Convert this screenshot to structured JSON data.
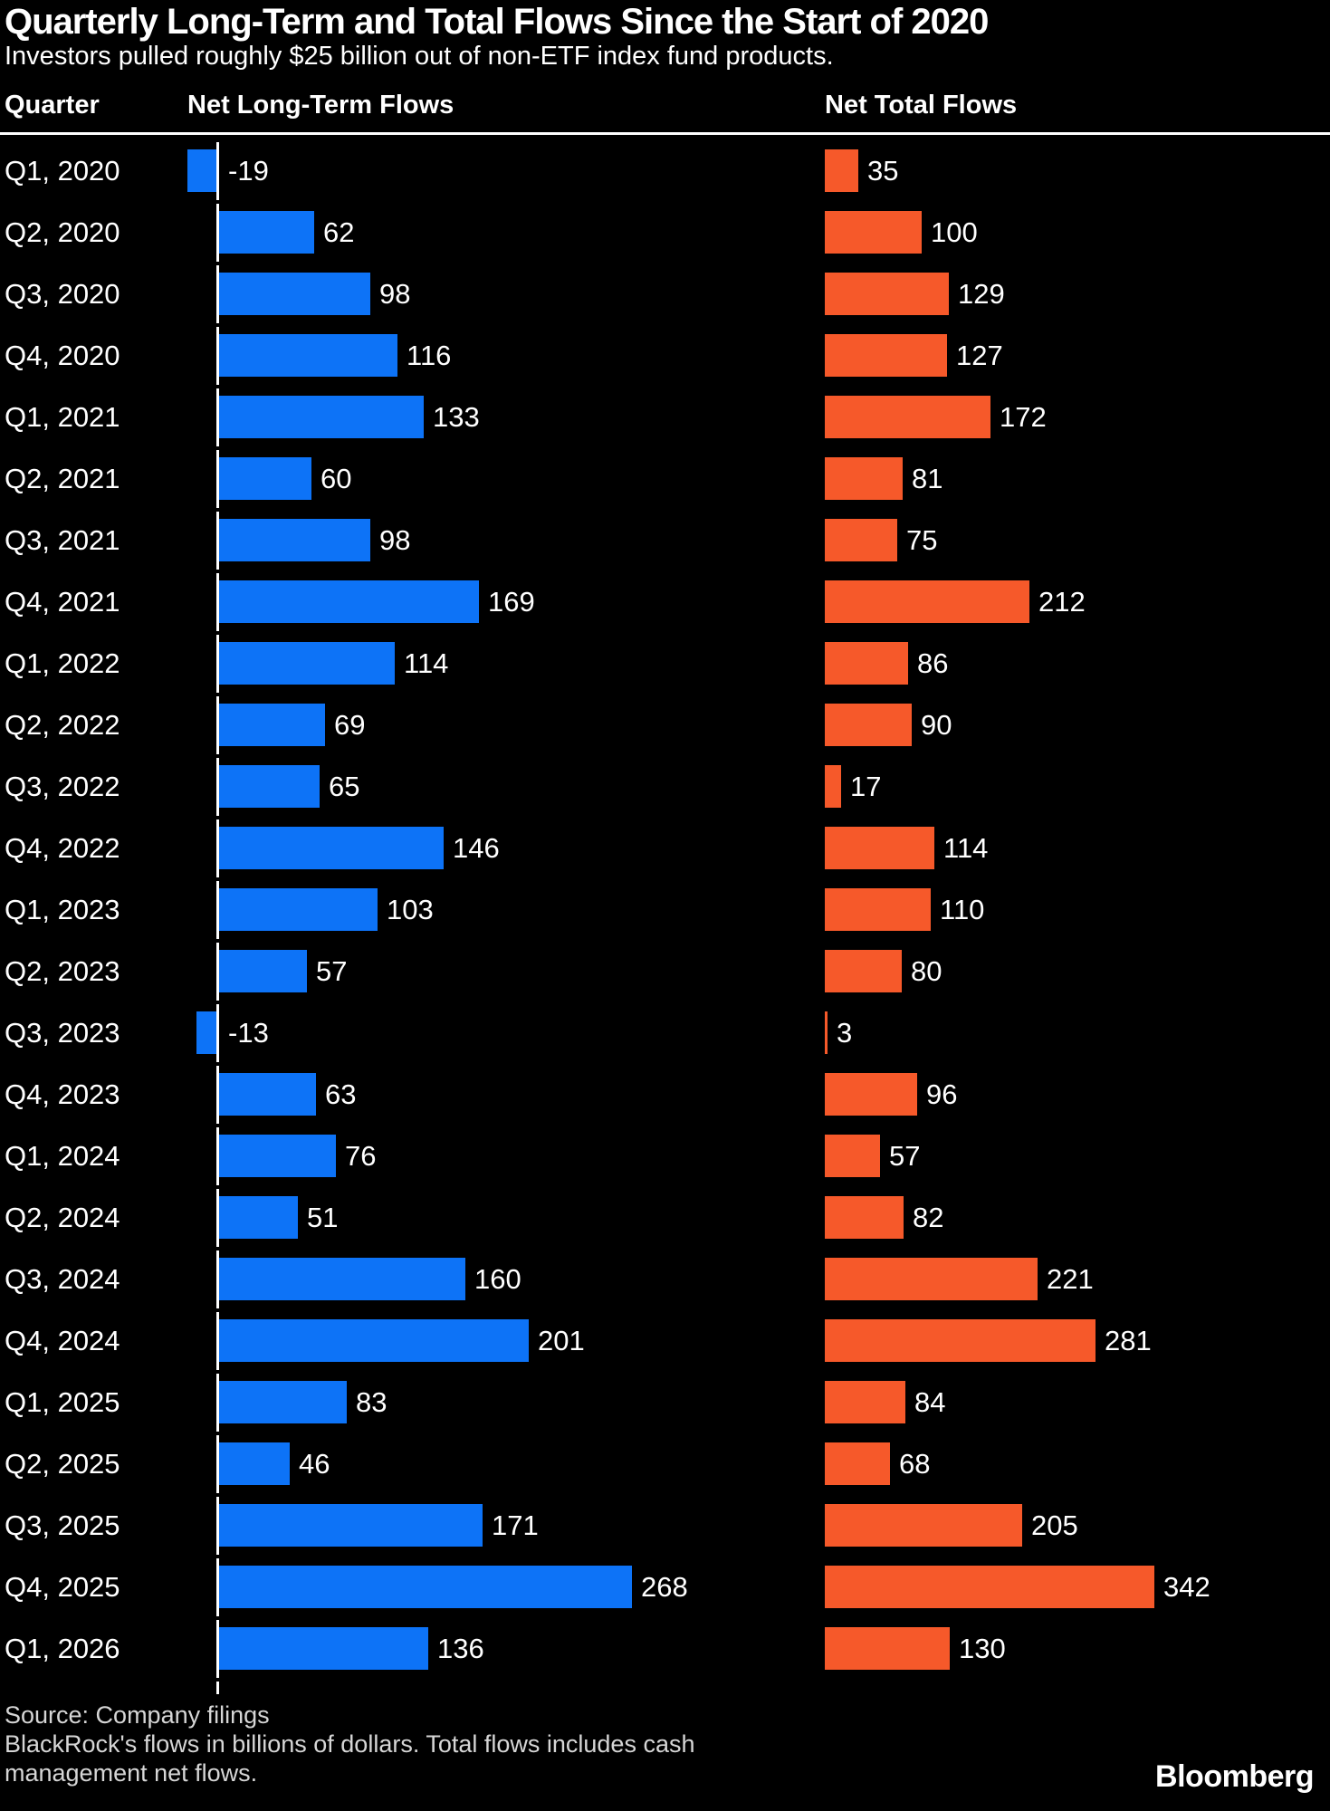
{
  "header": {
    "title": "Quarterly Long-Term and Total Flows Since the Start of 2020",
    "subtitle": "Investors pulled roughly $25 billion out of non-ETF index fund products.",
    "col_quarter": "Quarter",
    "col_long_term": "Net Long-Term Flows",
    "col_total": "Net Total Flows"
  },
  "chart_data": {
    "type": "bar",
    "orientation": "horizontal",
    "title": "Quarterly Long-Term and Total Flows Since the Start of 2020",
    "subtitle": "Investors pulled roughly $25 billion out of non-ETF index fund products.",
    "categories": [
      "Q1, 2020",
      "Q2, 2020",
      "Q3, 2020",
      "Q4, 2020",
      "Q1, 2021",
      "Q2, 2021",
      "Q3, 2021",
      "Q4, 2021",
      "Q1, 2022",
      "Q2, 2022",
      "Q3, 2022",
      "Q4, 2022",
      "Q1, 2023",
      "Q2, 2023",
      "Q3, 2023",
      "Q4, 2023",
      "Q1, 2024",
      "Q2, 2024",
      "Q3, 2024",
      "Q4, 2024",
      "Q1, 2025",
      "Q2, 2025",
      "Q3, 2025",
      "Q4, 2025",
      "Q1, 2026"
    ],
    "series": [
      {
        "name": "Net Long-Term Flows",
        "color": "#0d73f7",
        "values": [
          -19,
          62,
          98,
          116,
          133,
          60,
          98,
          169,
          114,
          69,
          65,
          146,
          103,
          57,
          -13,
          63,
          76,
          51,
          160,
          201,
          83,
          46,
          171,
          268,
          136
        ]
      },
      {
        "name": "Net Total Flows",
        "color": "#f6592a",
        "values": [
          35,
          100,
          129,
          127,
          172,
          81,
          75,
          212,
          86,
          90,
          17,
          114,
          110,
          80,
          3,
          96,
          57,
          82,
          221,
          281,
          84,
          68,
          205,
          342,
          130
        ]
      }
    ],
    "value_labels": true,
    "units": "billions of dollars",
    "grid": false,
    "legend_position": "column-headers"
  },
  "footer": {
    "source": "Source: Company filings",
    "note": "BlackRock's flows in billions of dollars. Total flows includes cash management net flows.",
    "logo": "Bloomberg"
  },
  "colors": {
    "background": "#000000",
    "long_term_blue": "#0d73f7",
    "total_orange": "#f6592a",
    "text": "#ffffff",
    "footer_text": "#d6d6d6"
  }
}
